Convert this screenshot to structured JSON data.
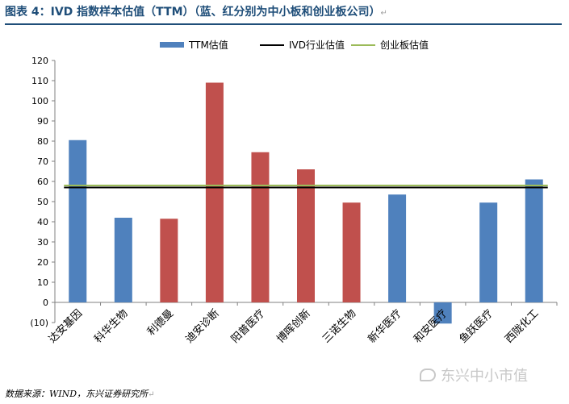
{
  "header": {
    "title": "图表 4：IVD 指数样本估值（TTM）（蓝、红分别为中小板和创业板公司）",
    "return_mark": "↵"
  },
  "footer": {
    "source": "数据来源：WIND，东兴证券研究所",
    "watermark": "东兴中小市值",
    "watermark_icon": "wechat-icon"
  },
  "colors": {
    "sme_board": "#4f81bd",
    "chinext": "#c0504d",
    "industry_line": "#000000",
    "chinext_line": "#9bbb59",
    "title": "#1f4e79"
  },
  "chart_data": {
    "type": "bar",
    "categories": [
      "达安基因",
      "科华生物",
      "利德曼",
      "迪安诊断",
      "阳普医疗",
      "博晖创新",
      "三诺生物",
      "新华医疗",
      "和安医疗",
      "鱼跃医疗",
      "西陇化工"
    ],
    "values": [
      80.5,
      42,
      41.5,
      109,
      74.5,
      66,
      49.5,
      53.5,
      -10.5,
      49.5,
      61
    ],
    "board": [
      "sme",
      "sme",
      "chinext",
      "chinext",
      "chinext",
      "chinext",
      "chinext",
      "sme",
      "sme",
      "sme",
      "sme"
    ],
    "legend": [
      "TTM估值",
      "IVD行业估值",
      "创业板估值"
    ],
    "reference_lines": [
      {
        "name": "IVD行业估值",
        "value": 57
      },
      {
        "name": "创业板估值",
        "value": 58
      }
    ],
    "yticks": [
      "120",
      "110",
      "100",
      "90",
      "80",
      "70",
      "60",
      "50",
      "40",
      "30",
      "20",
      "10",
      "0",
      "(10)"
    ],
    "ylim": [
      -10,
      120
    ],
    "ystep": 10,
    "legend_position": "top",
    "grid": false
  }
}
